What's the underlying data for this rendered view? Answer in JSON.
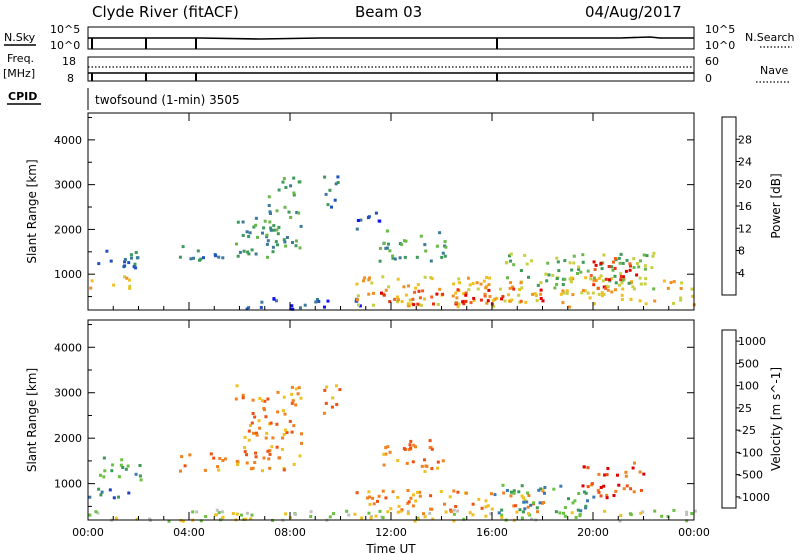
{
  "header": {
    "station": "Clyde River (fitACF)",
    "beam": "Beam 03",
    "date": "04/Aug/2017"
  },
  "left_labels": {
    "nsky": "N.Sky",
    "freq": "Freq.",
    "mhz": "[MHz]",
    "cpid": "CPID"
  },
  "right_labels": {
    "nsearch": "N.Search",
    "nave": "Nave"
  },
  "noise_axis": {
    "top": "10^5",
    "bottom": "10^0"
  },
  "freq_axis": {
    "left_top": "18",
    "left_bottom": "8",
    "right_top": "60",
    "right_bottom": "0"
  },
  "cpid_text": "twofsound (1-min) 3505",
  "chart_data": [
    {
      "type": "heatmap",
      "title": "",
      "ylabel": "Slant Range [km]",
      "xlabel": "",
      "x_ticks": [
        "00:00",
        "04:00",
        "08:00",
        "12:00",
        "16:00",
        "20:00",
        "00:00"
      ],
      "y_ticks": [
        1000,
        2000,
        3000,
        4000
      ],
      "ylim": [
        200,
        4600
      ],
      "xlim_hours": [
        0,
        24
      ],
      "colorbar": {
        "label": "Power [dB]",
        "ticks": [
          "4",
          "8",
          "12",
          "16",
          "20",
          "24",
          "28"
        ],
        "colors": [
          "#1010ff",
          "#2050c0",
          "#3a7a9a",
          "#3c9a5a",
          "#6ab84a",
          "#c8d040",
          "#f0c020",
          "#f09020",
          "#f06020",
          "#e83010",
          "#e00000"
        ]
      },
      "echo_regions": [
        {
          "t0": 0.0,
          "t1": 1.6,
          "r0": 700,
          "r1": 1000,
          "level": 6
        },
        {
          "t0": 0.3,
          "t1": 2.2,
          "r0": 1100,
          "r1": 1600,
          "level": 2
        },
        {
          "t0": 3.6,
          "t1": 5.4,
          "r0": 1300,
          "r1": 1700,
          "level": 2
        },
        {
          "t0": 5.8,
          "t1": 7.6,
          "r0": 1300,
          "r1": 2300,
          "level": 3
        },
        {
          "t0": 7.0,
          "t1": 8.4,
          "r0": 1600,
          "r1": 3200,
          "level": 3
        },
        {
          "t0": 9.3,
          "t1": 10.0,
          "r0": 2500,
          "r1": 3300,
          "level": 2
        },
        {
          "t0": 10.5,
          "t1": 11.5,
          "r0": 1900,
          "r1": 2400,
          "level": 1
        },
        {
          "t0": 11.5,
          "t1": 14.2,
          "r0": 1300,
          "r1": 2000,
          "level": 3
        },
        {
          "t0": 6.0,
          "t1": 11.0,
          "r0": 250,
          "r1": 500,
          "level": 1
        },
        {
          "t0": 10.5,
          "t1": 24.0,
          "r0": 300,
          "r1": 1000,
          "level": 6
        },
        {
          "t0": 11.5,
          "t1": 18.0,
          "r0": 350,
          "r1": 700,
          "level": 9
        },
        {
          "t0": 16.5,
          "t1": 22.5,
          "r0": 700,
          "r1": 1500,
          "level": 4
        },
        {
          "t0": 19.8,
          "t1": 21.8,
          "r0": 700,
          "r1": 1400,
          "level": 9
        }
      ]
    },
    {
      "type": "heatmap",
      "title": "",
      "ylabel": "Slant Range [km]",
      "xlabel": "Time UT",
      "x_ticks": [
        "00:00",
        "04:00",
        "08:00",
        "12:00",
        "16:00",
        "20:00",
        "00:00"
      ],
      "y_ticks": [
        1000,
        2000,
        3000,
        4000
      ],
      "ylim": [
        200,
        4600
      ],
      "xlim_hours": [
        0,
        24
      ],
      "colorbar": {
        "label": "Velocity [m s^-1]",
        "ticks": [
          "1000",
          "500",
          "100",
          "25",
          "-25",
          "-100",
          "-500",
          "-1000"
        ],
        "colors": [
          "#2040c0",
          "#3a7ab0",
          "#3a9a5a",
          "#6ac040",
          "#c0c0c0",
          "#f0c020",
          "#f08020",
          "#f05010",
          "#e00000"
        ]
      },
      "echo_regions": [
        {
          "t0": 0.0,
          "t1": 1.6,
          "r0": 700,
          "r1": 1000,
          "level": 1
        },
        {
          "t0": 0.3,
          "t1": 2.2,
          "r0": 1100,
          "r1": 1600,
          "level": 2
        },
        {
          "t0": 3.6,
          "t1": 5.4,
          "r0": 1300,
          "r1": 1700,
          "level": 6
        },
        {
          "t0": 5.8,
          "t1": 8.4,
          "r0": 1300,
          "r1": 3200,
          "level": 6
        },
        {
          "t0": 9.3,
          "t1": 10.0,
          "r0": 2500,
          "r1": 3300,
          "level": 6
        },
        {
          "t0": 11.5,
          "t1": 14.2,
          "r0": 1300,
          "r1": 2000,
          "level": 6
        },
        {
          "t0": 0.0,
          "t1": 24.0,
          "r0": 200,
          "r1": 450,
          "level": 4
        },
        {
          "t0": 10.5,
          "t1": 18.0,
          "r0": 350,
          "r1": 900,
          "level": 6
        },
        {
          "t0": 16.0,
          "t1": 20.0,
          "r0": 350,
          "r1": 1000,
          "level": 2
        },
        {
          "t0": 19.5,
          "t1": 22.0,
          "r0": 700,
          "r1": 1500,
          "level": 7
        }
      ]
    }
  ]
}
